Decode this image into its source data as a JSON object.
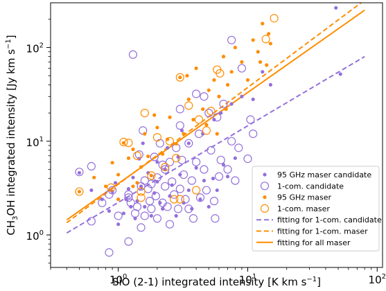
{
  "chart_data": {
    "type": "scatter",
    "xlabel": "SiO (2-1) integrated intensity [K km s",
    "xlabel_sup": "−1",
    "xlabel_tail": "]",
    "ylabel_pre": "CH",
    "ylabel_sub": "3",
    "ylabel_mid": "OH integrated intensity [Jy km s",
    "ylabel_sup": "−1",
    "ylabel_tail": "]",
    "xscale": "log",
    "yscale": "log",
    "xlim": [
      0.3,
      110
    ],
    "ylim": [
      0.45,
      300
    ],
    "xticks": [
      {
        "value": 1,
        "base": "10",
        "exp": "0"
      },
      {
        "value": 10,
        "base": "10",
        "exp": "1"
      },
      {
        "value": 100,
        "base": "10",
        "exp": "2"
      }
    ],
    "yticks": [
      {
        "value": 1,
        "base": "10",
        "exp": "0"
      },
      {
        "value": 10,
        "base": "10",
        "exp": "1"
      },
      {
        "value": 100,
        "base": "10",
        "exp": "2"
      }
    ],
    "grid": false,
    "legend_position": "lower-right",
    "colors": {
      "candidate": "#9370db",
      "maser": "#ff8c00"
    },
    "legend": [
      {
        "label": "95 GHz maser candidate",
        "marker": "dot",
        "color": "#9370db"
      },
      {
        "label": "1-com. candidate",
        "marker": "ring",
        "color": "#9370db"
      },
      {
        "label": "95 GHz maser",
        "marker": "dot",
        "color": "#ff8c00"
      },
      {
        "label": "1-com. maser",
        "marker": "ring",
        "color": "#ff8c00"
      },
      {
        "label": "fitting for 1-com. candidate",
        "marker": "dash",
        "color": "#9370db"
      },
      {
        "label": "fitting for 1-com. maser",
        "marker": "dash",
        "color": "#ff8c00"
      },
      {
        "label": "fitting for all maser",
        "marker": "solid",
        "color": "#ff8c00"
      }
    ],
    "series": [
      {
        "name": "95 GHz maser candidate",
        "marker": "dot",
        "color": "#9370db",
        "points": [
          [
            0.5,
            4.6
          ],
          [
            0.62,
            3.0
          ],
          [
            0.75,
            2.4
          ],
          [
            0.85,
            1.8
          ],
          [
            0.9,
            2.9
          ],
          [
            0.95,
            3.6
          ],
          [
            1.1,
            1.7
          ],
          [
            1.15,
            2.4
          ],
          [
            1.2,
            3.1
          ],
          [
            1.25,
            2.0
          ],
          [
            1.3,
            4.1
          ],
          [
            1.35,
            1.5
          ],
          [
            1.4,
            2.3
          ],
          [
            1.5,
            3.3
          ],
          [
            1.6,
            2.0
          ],
          [
            1.7,
            4.6
          ],
          [
            1.8,
            1.6
          ],
          [
            1.9,
            2.8
          ],
          [
            2.0,
            3.7
          ],
          [
            2.1,
            2.2
          ],
          [
            2.2,
            1.9
          ],
          [
            2.3,
            5.0
          ],
          [
            2.5,
            2.6
          ],
          [
            2.6,
            3.4
          ],
          [
            2.8,
            1.6
          ],
          [
            3.0,
            4.4
          ],
          [
            3.2,
            2.2
          ],
          [
            3.5,
            3.0
          ],
          [
            3.7,
            1.9
          ],
          [
            4.0,
            5.2
          ],
          [
            4.3,
            2.4
          ],
          [
            4.6,
            3.8
          ],
          [
            5.0,
            2.0
          ],
          [
            5.4,
            4.0
          ],
          [
            5.8,
            3.0
          ],
          [
            6.5,
            5.6
          ],
          [
            7.0,
            4.2
          ],
          [
            8.0,
            6.6
          ],
          [
            1.55,
            9.5
          ],
          [
            2.0,
            6.0
          ],
          [
            2.4,
            8.5
          ],
          [
            3.1,
            13.0
          ],
          [
            3.5,
            9.5
          ],
          [
            4.5,
            12.0
          ],
          [
            5.5,
            17.0
          ],
          [
            6.2,
            20.0
          ],
          [
            7.5,
            25.0
          ],
          [
            9.0,
            30.0
          ],
          [
            11.0,
            28.0
          ],
          [
            13.0,
            55.0
          ],
          [
            15.0,
            40.0
          ],
          [
            48.0,
            265.0
          ],
          [
            52.0,
            52.0
          ],
          [
            1.0,
            1.3
          ],
          [
            1.45,
            6.5
          ],
          [
            2.9,
            6.8
          ]
        ]
      },
      {
        "name": "1-com. candidate",
        "marker": "ring",
        "color": "#9370db",
        "points": [
          [
            0.5,
            4.7
          ],
          [
            0.62,
            5.4
          ],
          [
            0.62,
            1.4
          ],
          [
            0.75,
            2.2
          ],
          [
            0.85,
            0.65
          ],
          [
            0.9,
            3.0
          ],
          [
            1.0,
            1.6
          ],
          [
            1.2,
            2.7
          ],
          [
            1.2,
            2.5
          ],
          [
            1.2,
            0.85
          ],
          [
            1.25,
            2.2
          ],
          [
            1.3,
            84.0
          ],
          [
            1.4,
            2.0
          ],
          [
            1.45,
            7.2
          ],
          [
            1.5,
            3.3
          ],
          [
            1.5,
            1.2
          ],
          [
            1.55,
            13.0
          ],
          [
            1.6,
            1.6
          ],
          [
            1.6,
            3.8
          ],
          [
            1.7,
            3.1
          ],
          [
            1.75,
            2.3
          ],
          [
            1.8,
            3.5
          ],
          [
            1.8,
            1.9
          ],
          [
            1.9,
            6.8
          ],
          [
            1.95,
            2.6
          ],
          [
            2.0,
            4.1
          ],
          [
            2.0,
            1.5
          ],
          [
            2.1,
            9.5
          ],
          [
            2.2,
            2.2
          ],
          [
            2.3,
            3.3
          ],
          [
            2.3,
            5.0
          ],
          [
            2.4,
            2.0
          ],
          [
            2.5,
            6.0
          ],
          [
            2.5,
            1.3
          ],
          [
            2.6,
            3.7
          ],
          [
            2.7,
            2.7
          ],
          [
            2.8,
            8.5
          ],
          [
            2.9,
            1.9
          ],
          [
            3.0,
            14.7
          ],
          [
            3.0,
            3.1
          ],
          [
            3.1,
            6.3
          ],
          [
            3.2,
            4.4
          ],
          [
            3.3,
            2.4
          ],
          [
            3.5,
            9.5
          ],
          [
            3.5,
            1.9
          ],
          [
            3.7,
            3.8
          ],
          [
            3.8,
            1.5
          ],
          [
            4.0,
            6.0
          ],
          [
            4.2,
            12.0
          ],
          [
            4.3,
            2.5
          ],
          [
            4.6,
            30.0
          ],
          [
            4.6,
            5.0
          ],
          [
            4.8,
            3.0
          ],
          [
            5.0,
            20.0
          ],
          [
            5.2,
            8.0
          ],
          [
            5.5,
            2.3
          ],
          [
            5.6,
            1.5
          ],
          [
            5.8,
            18.0
          ],
          [
            6.0,
            4.2
          ],
          [
            6.2,
            6.3
          ],
          [
            6.5,
            25.0
          ],
          [
            7.0,
            5.0
          ],
          [
            7.5,
            10.0
          ],
          [
            7.5,
            120.0
          ],
          [
            8.0,
            3.8
          ],
          [
            8.5,
            8.5
          ],
          [
            9.0,
            60.0
          ],
          [
            10.0,
            6.5
          ],
          [
            10.5,
            17.0
          ],
          [
            11.0,
            12.0
          ],
          [
            4.0,
            32.0
          ],
          [
            3.0,
            22.0
          ],
          [
            2.2,
            5.6
          ],
          [
            1.35,
            1.7
          ],
          [
            0.85,
            2.7
          ]
        ]
      },
      {
        "name": "95 GHz maser",
        "marker": "dot",
        "color": "#ff8c00",
        "points": [
          [
            0.5,
            2.9
          ],
          [
            0.65,
            4.1
          ],
          [
            0.8,
            3.3
          ],
          [
            0.9,
            5.9
          ],
          [
            1.0,
            4.4
          ],
          [
            1.1,
            9.6
          ],
          [
            1.2,
            6.6
          ],
          [
            1.3,
            8.2
          ],
          [
            1.4,
            3.6
          ],
          [
            1.5,
            5.3
          ],
          [
            1.6,
            12.0
          ],
          [
            1.7,
            6.9
          ],
          [
            1.8,
            4.3
          ],
          [
            2.0,
            14.0
          ],
          [
            2.2,
            7.3
          ],
          [
            2.5,
            18.0
          ],
          [
            2.8,
            9.4
          ],
          [
            3.0,
            48.0
          ],
          [
            3.2,
            12.0
          ],
          [
            3.5,
            28.0
          ],
          [
            3.8,
            17.0
          ],
          [
            4.0,
            60.0
          ],
          [
            4.5,
            22.0
          ],
          [
            5.0,
            35.0
          ],
          [
            5.5,
            45.0
          ],
          [
            6.0,
            30.0
          ],
          [
            6.5,
            80.0
          ],
          [
            7.0,
            40.0
          ],
          [
            7.5,
            55.0
          ],
          [
            8.0,
            100.0
          ],
          [
            9.0,
            70.0
          ],
          [
            10.0,
            45.0
          ],
          [
            11.0,
            120.0
          ],
          [
            12.0,
            90.0
          ],
          [
            13.0,
            180.0
          ],
          [
            14.0,
            65.0
          ],
          [
            15.0,
            110.0
          ],
          [
            3.4,
            50.0
          ],
          [
            2.4,
            10.5
          ],
          [
            4.8,
            15.0
          ],
          [
            6.8,
            22.0
          ],
          [
            1.9,
            19.0
          ],
          [
            1.0,
            2.4
          ],
          [
            1.3,
            3.3
          ],
          [
            5.8,
            12.0
          ],
          [
            12.5,
            70.0
          ],
          [
            14.5,
            140.0
          ]
        ]
      },
      {
        "name": "1-com. maser",
        "marker": "ring",
        "color": "#ff8c00",
        "points": [
          [
            0.5,
            2.9
          ],
          [
            0.88,
            3.2
          ],
          [
            1.1,
            9.8
          ],
          [
            1.2,
            9.6
          ],
          [
            1.4,
            7.0
          ],
          [
            1.5,
            2.5
          ],
          [
            1.5,
            2.9
          ],
          [
            1.6,
            20.0
          ],
          [
            1.8,
            4.3
          ],
          [
            2.0,
            11.0
          ],
          [
            2.3,
            5.3
          ],
          [
            2.5,
            10.0
          ],
          [
            2.7,
            2.4
          ],
          [
            3.0,
            48.0
          ],
          [
            3.0,
            2.4
          ],
          [
            3.5,
            24.0
          ],
          [
            4.0,
            3.0
          ],
          [
            4.8,
            13.0
          ],
          [
            5.2,
            21.0
          ],
          [
            5.8,
            58.0
          ],
          [
            6.1,
            53.0
          ],
          [
            13.8,
            123.0
          ],
          [
            16.0,
            205.0
          ],
          [
            2.8,
            6.6
          ],
          [
            4.2,
            17.0
          ]
        ]
      }
    ],
    "fits": [
      {
        "name": "fitting for 1-com. candidate",
        "style": "dashed",
        "color": "#9370db",
        "x": [
          0.4,
          80.0
        ],
        "y": [
          1.05,
          80.0
        ]
      },
      {
        "name": "fitting for 1-com. maser",
        "style": "dashed",
        "color": "#ff8c00",
        "x": [
          0.4,
          80.0
        ],
        "y": [
          1.35,
          320.0
        ]
      },
      {
        "name": "fitting for all maser",
        "style": "solid",
        "color": "#ff8c00",
        "x": [
          0.4,
          80.0
        ],
        "y": [
          1.45,
          250.0
        ]
      }
    ]
  }
}
